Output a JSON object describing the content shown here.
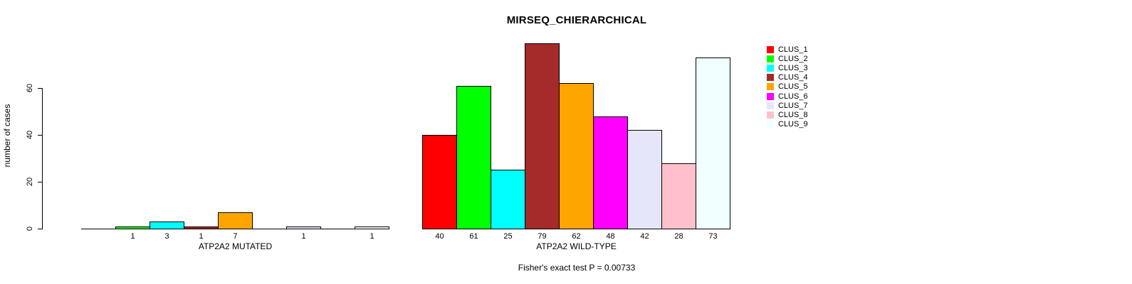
{
  "chart_data": {
    "type": "bar",
    "title": "MIRSEQ_CHIERARCHICAL",
    "ylabel": "number of cases",
    "xlabel": "",
    "annotation": "Fisher's exact test P = 0.00733",
    "yticks": [
      0,
      20,
      40,
      60
    ],
    "ylim": [
      0,
      82
    ],
    "grid": false,
    "legend_position": "right",
    "bar_border_color": "#000000",
    "clusters": [
      {
        "name": "CLUS_1",
        "color": "#FF0000"
      },
      {
        "name": "CLUS_2",
        "color": "#00FF00"
      },
      {
        "name": "CLUS_3",
        "color": "#00FFFF"
      },
      {
        "name": "CLUS_4",
        "color": "#A52A2A"
      },
      {
        "name": "CLUS_5",
        "color": "#FFA500"
      },
      {
        "name": "CLUS_6",
        "color": "#FF00FF"
      },
      {
        "name": "CLUS_7",
        "color": "#E6E6FA"
      },
      {
        "name": "CLUS_8",
        "color": "#FFC0CB"
      },
      {
        "name": "CLUS_9",
        "color": "#F0FFFF"
      }
    ],
    "groups": [
      {
        "label": "ATP2A2 MUTATED",
        "values": [
          0,
          1,
          3,
          1,
          7,
          0,
          1,
          0,
          1
        ]
      },
      {
        "label": "ATP2A2 WILD-TYPE",
        "values": [
          40,
          61,
          25,
          79,
          62,
          48,
          42,
          28,
          73
        ]
      }
    ]
  }
}
